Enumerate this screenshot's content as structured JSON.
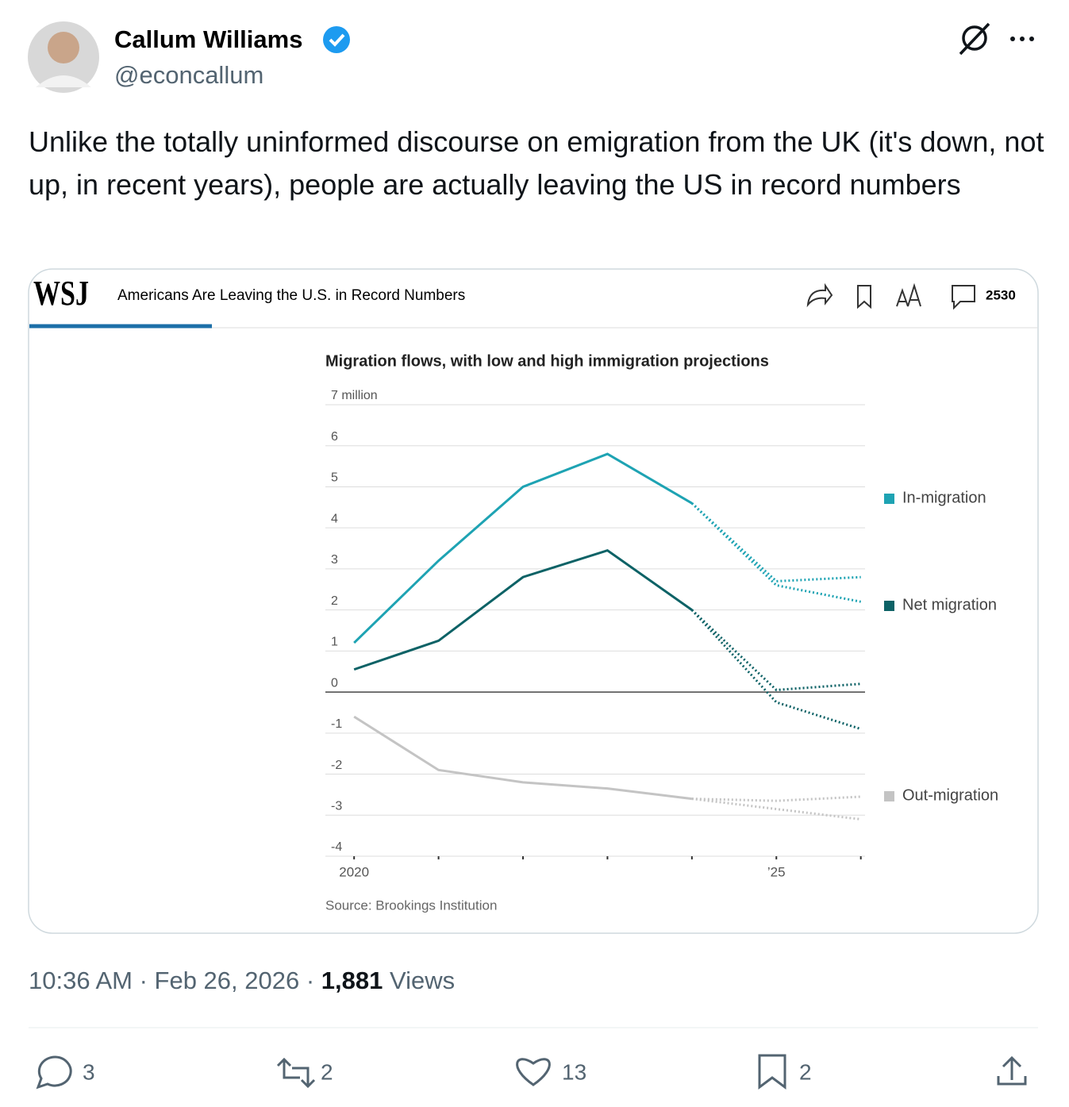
{
  "author": {
    "name": "Callum Williams",
    "handle": "@econcallum"
  },
  "text": "Unlike the totally uninformed discourse on emigration from the UK (it's down, not up, in recent years), people are actually leaving the US in record numbers",
  "card": {
    "logo": "WSJ",
    "headline": "Americans Are Leaving the U.S. in Record Numbers",
    "comments": 2530
  },
  "chart_data": {
    "type": "line",
    "title": "Migration flows, with low and high immigration projections",
    "source": "Source: Brookings Institution",
    "x": [
      2020,
      2021,
      2022,
      2023,
      2024,
      2025,
      2026
    ],
    "xlim": [
      2019.66,
      2026.05
    ],
    "xticks": [
      2020,
      {
        "value": 2021,
        "label": null
      },
      {
        "value": 2022,
        "label": null
      },
      {
        "value": 2023,
        "label": null
      },
      {
        "value": 2024,
        "label": null
      },
      {
        "value": 2025,
        "label": "’25"
      },
      {
        "value": 2026,
        "label": null
      }
    ],
    "ylim": [
      -4,
      7
    ],
    "yticks": [
      -4,
      -3,
      -2,
      -1,
      0,
      1,
      2,
      3,
      4,
      5,
      6,
      {
        "value": 7,
        "label": "7 million"
      }
    ],
    "grid": true,
    "series": [
      {
        "name": "In-migration",
        "color": "#1ea3b3",
        "values": [
          1.2,
          3.2,
          5.0,
          5.8,
          4.6,
          null,
          null
        ],
        "projections": [
          [
            null,
            null,
            null,
            null,
            4.6,
            2.7,
            2.8
          ],
          [
            null,
            null,
            null,
            null,
            4.6,
            2.6,
            2.2
          ]
        ]
      },
      {
        "name": "Net migration",
        "color": "#0d6266",
        "values": [
          0.55,
          1.25,
          2.8,
          3.45,
          2.0,
          null,
          null
        ],
        "projections": [
          [
            null,
            null,
            null,
            null,
            2.0,
            0.05,
            0.2
          ],
          [
            null,
            null,
            null,
            null,
            2.0,
            -0.25,
            -0.9
          ]
        ]
      },
      {
        "name": "Out-migration",
        "color": "#c4c4c4",
        "values": [
          -0.6,
          -1.9,
          -2.2,
          -2.35,
          -2.6,
          null,
          null
        ],
        "projections": [
          [
            null,
            null,
            null,
            null,
            -2.6,
            -2.65,
            -2.55
          ],
          [
            null,
            null,
            null,
            null,
            -2.6,
            -2.85,
            -3.1
          ]
        ]
      }
    ]
  },
  "meta": {
    "timestamp": "10:36 AM · Feb 26, 2026 ·",
    "views": "1,881",
    "views_label": "Views"
  },
  "stats": {
    "replies": 3,
    "reposts": 2,
    "likes": 13,
    "bookmarks": 2
  }
}
